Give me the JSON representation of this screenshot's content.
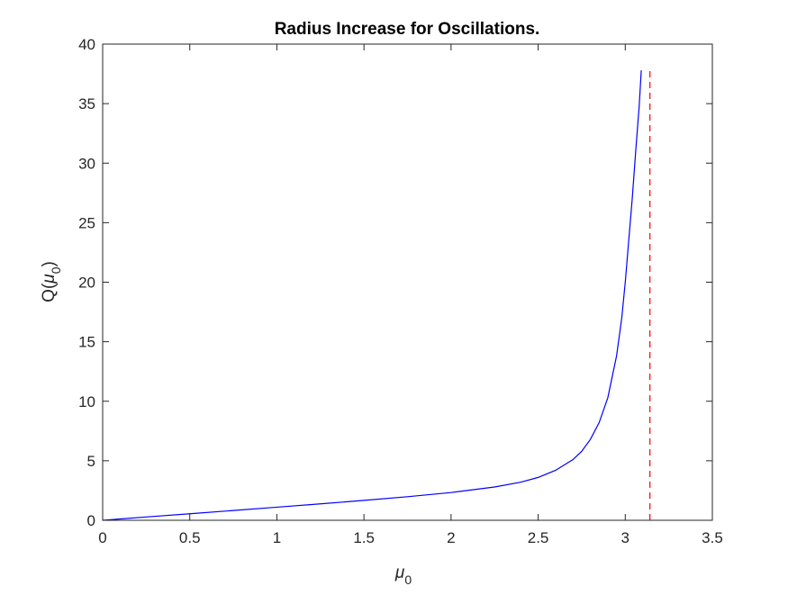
{
  "chart_data": {
    "type": "line",
    "title": "Radius Increase for Oscillations.",
    "xlabel": {
      "main": "μ",
      "sub": "0"
    },
    "ylabel": {
      "prefix": "Q(",
      "main": "μ",
      "sub": "0",
      "suffix": ")"
    },
    "xlim": [
      0,
      3.5
    ],
    "ylim": [
      0,
      40
    ],
    "x_ticks": [
      0,
      0.5,
      1,
      1.5,
      2,
      2.5,
      3,
      3.5
    ],
    "x_tick_labels": [
      "0",
      "0.5",
      "1",
      "1.5",
      "2",
      "2.5",
      "3",
      "3.5"
    ],
    "y_ticks": [
      0,
      5,
      10,
      15,
      20,
      25,
      30,
      35,
      40
    ],
    "y_tick_labels": [
      "0",
      "5",
      "10",
      "15",
      "20",
      "25",
      "30",
      "35",
      "40"
    ],
    "grid": false,
    "series": [
      {
        "style": "solid",
        "color": "#0000ff",
        "x": [
          0,
          0.25,
          0.5,
          0.75,
          1.0,
          1.25,
          1.5,
          1.75,
          2.0,
          2.25,
          2.4,
          2.5,
          2.6,
          2.7,
          2.75,
          2.8,
          2.85,
          2.9,
          2.95,
          2.98,
          3.0,
          3.02,
          3.04,
          3.06,
          3.08,
          3.092
        ],
        "y": [
          0,
          0.28,
          0.55,
          0.82,
          1.1,
          1.38,
          1.67,
          1.98,
          2.33,
          2.8,
          3.2,
          3.6,
          4.2,
          5.1,
          5.8,
          6.8,
          8.2,
          10.3,
          13.8,
          17.0,
          20.0,
          23.5,
          27.0,
          31.0,
          34.8,
          37.8
        ]
      },
      {
        "style": "dashed",
        "color": "#ff0000",
        "x": [
          3.1416,
          3.1416
        ],
        "y": [
          0,
          38
        ]
      }
    ]
  }
}
